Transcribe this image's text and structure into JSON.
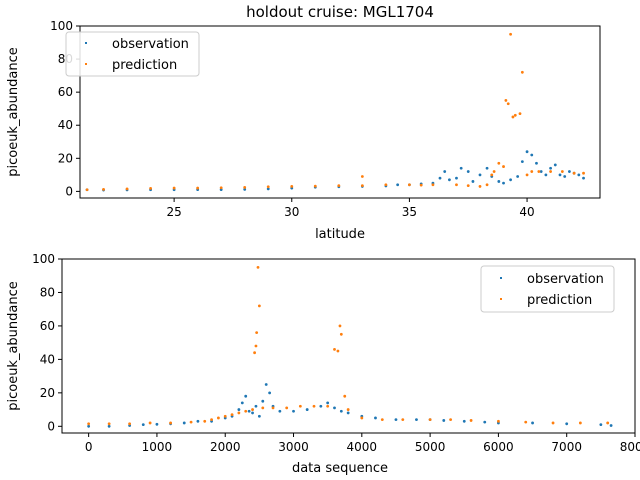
{
  "colors": {
    "observation": "#1f77b4",
    "prediction": "#ff7f0e"
  },
  "chart_data": [
    {
      "type": "scatter",
      "title": "holdout cruise: MGL1704",
      "xlabel": "latitude",
      "ylabel": "picoeuk_abundance",
      "xlim": [
        21,
        43.1
      ],
      "ylim": [
        -4,
        100
      ],
      "xticks": [
        25,
        30,
        35,
        40
      ],
      "yticks": [
        0,
        20,
        40,
        60,
        80,
        100
      ],
      "legend": "top-left",
      "series": [
        {
          "name": "observation",
          "points": [
            [
              21.3,
              1
            ],
            [
              22,
              0.8
            ],
            [
              23,
              0.9
            ],
            [
              24,
              1
            ],
            [
              25,
              1
            ],
            [
              26,
              1.1
            ],
            [
              27,
              1.1
            ],
            [
              28,
              1.2
            ],
            [
              29,
              1.5
            ],
            [
              30,
              2
            ],
            [
              31,
              2.5
            ],
            [
              32,
              2.8
            ],
            [
              33,
              3
            ],
            [
              34,
              3.3
            ],
            [
              34.5,
              4
            ],
            [
              35,
              4
            ],
            [
              35.5,
              4.5
            ],
            [
              36,
              5
            ],
            [
              36.3,
              8
            ],
            [
              36.5,
              12
            ],
            [
              36.7,
              7
            ],
            [
              37,
              8
            ],
            [
              37.2,
              14
            ],
            [
              37.5,
              12
            ],
            [
              37.7,
              6
            ],
            [
              38,
              10
            ],
            [
              38.3,
              14
            ],
            [
              38.5,
              9
            ],
            [
              38.8,
              6
            ],
            [
              39,
              5
            ],
            [
              39.3,
              7
            ],
            [
              39.6,
              9
            ],
            [
              39.8,
              18
            ],
            [
              40,
              24
            ],
            [
              40.2,
              22
            ],
            [
              40.4,
              17
            ],
            [
              40.6,
              12
            ],
            [
              40.8,
              10
            ],
            [
              41,
              14
            ],
            [
              41.2,
              16
            ],
            [
              41.4,
              10
            ],
            [
              41.6,
              9
            ],
            [
              41.8,
              12
            ],
            [
              42,
              11
            ],
            [
              42.2,
              10
            ],
            [
              42.4,
              8
            ]
          ]
        },
        {
          "name": "prediction",
          "points": [
            [
              21.3,
              1
            ],
            [
              22,
              1.2
            ],
            [
              23,
              1.5
            ],
            [
              24,
              1.8
            ],
            [
              25,
              2
            ],
            [
              26,
              2
            ],
            [
              27,
              2.2
            ],
            [
              28,
              2.4
            ],
            [
              29,
              2.8
            ],
            [
              30,
              3
            ],
            [
              31,
              3.2
            ],
            [
              32,
              3.5
            ],
            [
              33,
              3.5
            ],
            [
              34,
              4
            ],
            [
              35,
              4
            ],
            [
              35.5,
              3.8
            ],
            [
              36,
              4
            ],
            [
              37,
              4
            ],
            [
              37.5,
              3.5
            ],
            [
              38,
              3
            ],
            [
              38.3,
              4
            ],
            [
              38.5,
              10
            ],
            [
              38.8,
              17
            ],
            [
              39,
              15
            ],
            [
              39.1,
              55
            ],
            [
              39.2,
              53
            ],
            [
              39.3,
              95
            ],
            [
              39.4,
              45
            ],
            [
              39.5,
              46
            ],
            [
              39.7,
              47
            ],
            [
              39.8,
              72
            ],
            [
              40,
              10
            ],
            [
              40.2,
              12
            ],
            [
              40.5,
              12
            ],
            [
              41,
              12
            ],
            [
              41.5,
              12
            ],
            [
              42,
              11
            ],
            [
              42.4,
              11
            ],
            [
              33,
              9
            ],
            [
              38.6,
              12
            ]
          ]
        }
      ]
    },
    {
      "type": "scatter",
      "title": "",
      "xlabel": "data sequence",
      "ylabel": "picoeuk_abundance",
      "xlim": [
        -390,
        8000
      ],
      "ylim": [
        -4,
        100
      ],
      "xticks": [
        0,
        1000,
        2000,
        3000,
        4000,
        5000,
        6000,
        7000,
        8000
      ],
      "yticks": [
        0,
        20,
        40,
        60,
        80,
        100
      ],
      "legend": "top-right",
      "series": [
        {
          "name": "observation",
          "points": [
            [
              0,
              0
            ],
            [
              300,
              0
            ],
            [
              600,
              0.5
            ],
            [
              800,
              1
            ],
            [
              1000,
              1.2
            ],
            [
              1200,
              1.5
            ],
            [
              1400,
              2
            ],
            [
              1600,
              3
            ],
            [
              1800,
              3
            ],
            [
              2000,
              5
            ],
            [
              2100,
              6
            ],
            [
              2200,
              10
            ],
            [
              2250,
              14
            ],
            [
              2300,
              18
            ],
            [
              2350,
              9
            ],
            [
              2400,
              8
            ],
            [
              2450,
              12
            ],
            [
              2500,
              6
            ],
            [
              2550,
              15
            ],
            [
              2600,
              25
            ],
            [
              2650,
              20
            ],
            [
              2700,
              12
            ],
            [
              2800,
              9
            ],
            [
              3000,
              9
            ],
            [
              3200,
              10
            ],
            [
              3400,
              12
            ],
            [
              3500,
              14
            ],
            [
              3600,
              11
            ],
            [
              3700,
              9
            ],
            [
              3800,
              8
            ],
            [
              4000,
              6
            ],
            [
              4200,
              5
            ],
            [
              4500,
              4
            ],
            [
              4800,
              4
            ],
            [
              5000,
              4
            ],
            [
              5200,
              3.5
            ],
            [
              5500,
              3
            ],
            [
              5800,
              2.5
            ],
            [
              6000,
              2
            ],
            [
              6500,
              2
            ],
            [
              7000,
              1.5
            ],
            [
              7500,
              1
            ],
            [
              7650,
              0.5
            ]
          ]
        },
        {
          "name": "prediction",
          "points": [
            [
              0,
              1.5
            ],
            [
              300,
              1.5
            ],
            [
              600,
              1.5
            ],
            [
              900,
              2
            ],
            [
              1200,
              2
            ],
            [
              1500,
              2.5
            ],
            [
              1700,
              3
            ],
            [
              1800,
              4
            ],
            [
              1900,
              5
            ],
            [
              2000,
              6
            ],
            [
              2100,
              7
            ],
            [
              2200,
              8
            ],
            [
              2300,
              9
            ],
            [
              2400,
              10
            ],
            [
              2430,
              44
            ],
            [
              2450,
              48
            ],
            [
              2460,
              56
            ],
            [
              2480,
              95
            ],
            [
              2500,
              72
            ],
            [
              2550,
              11
            ],
            [
              2700,
              11
            ],
            [
              2900,
              11
            ],
            [
              3100,
              12
            ],
            [
              3300,
              12
            ],
            [
              3500,
              12
            ],
            [
              3600,
              46
            ],
            [
              3650,
              45
            ],
            [
              3680,
              60
            ],
            [
              3700,
              55
            ],
            [
              3750,
              18
            ],
            [
              3800,
              10
            ],
            [
              4000,
              5
            ],
            [
              4300,
              4
            ],
            [
              4600,
              4
            ],
            [
              5000,
              4
            ],
            [
              5300,
              4
            ],
            [
              5600,
              3.5
            ],
            [
              6000,
              3
            ],
            [
              6400,
              2.5
            ],
            [
              6800,
              2
            ],
            [
              7200,
              2
            ],
            [
              7600,
              2
            ]
          ]
        }
      ]
    }
  ]
}
